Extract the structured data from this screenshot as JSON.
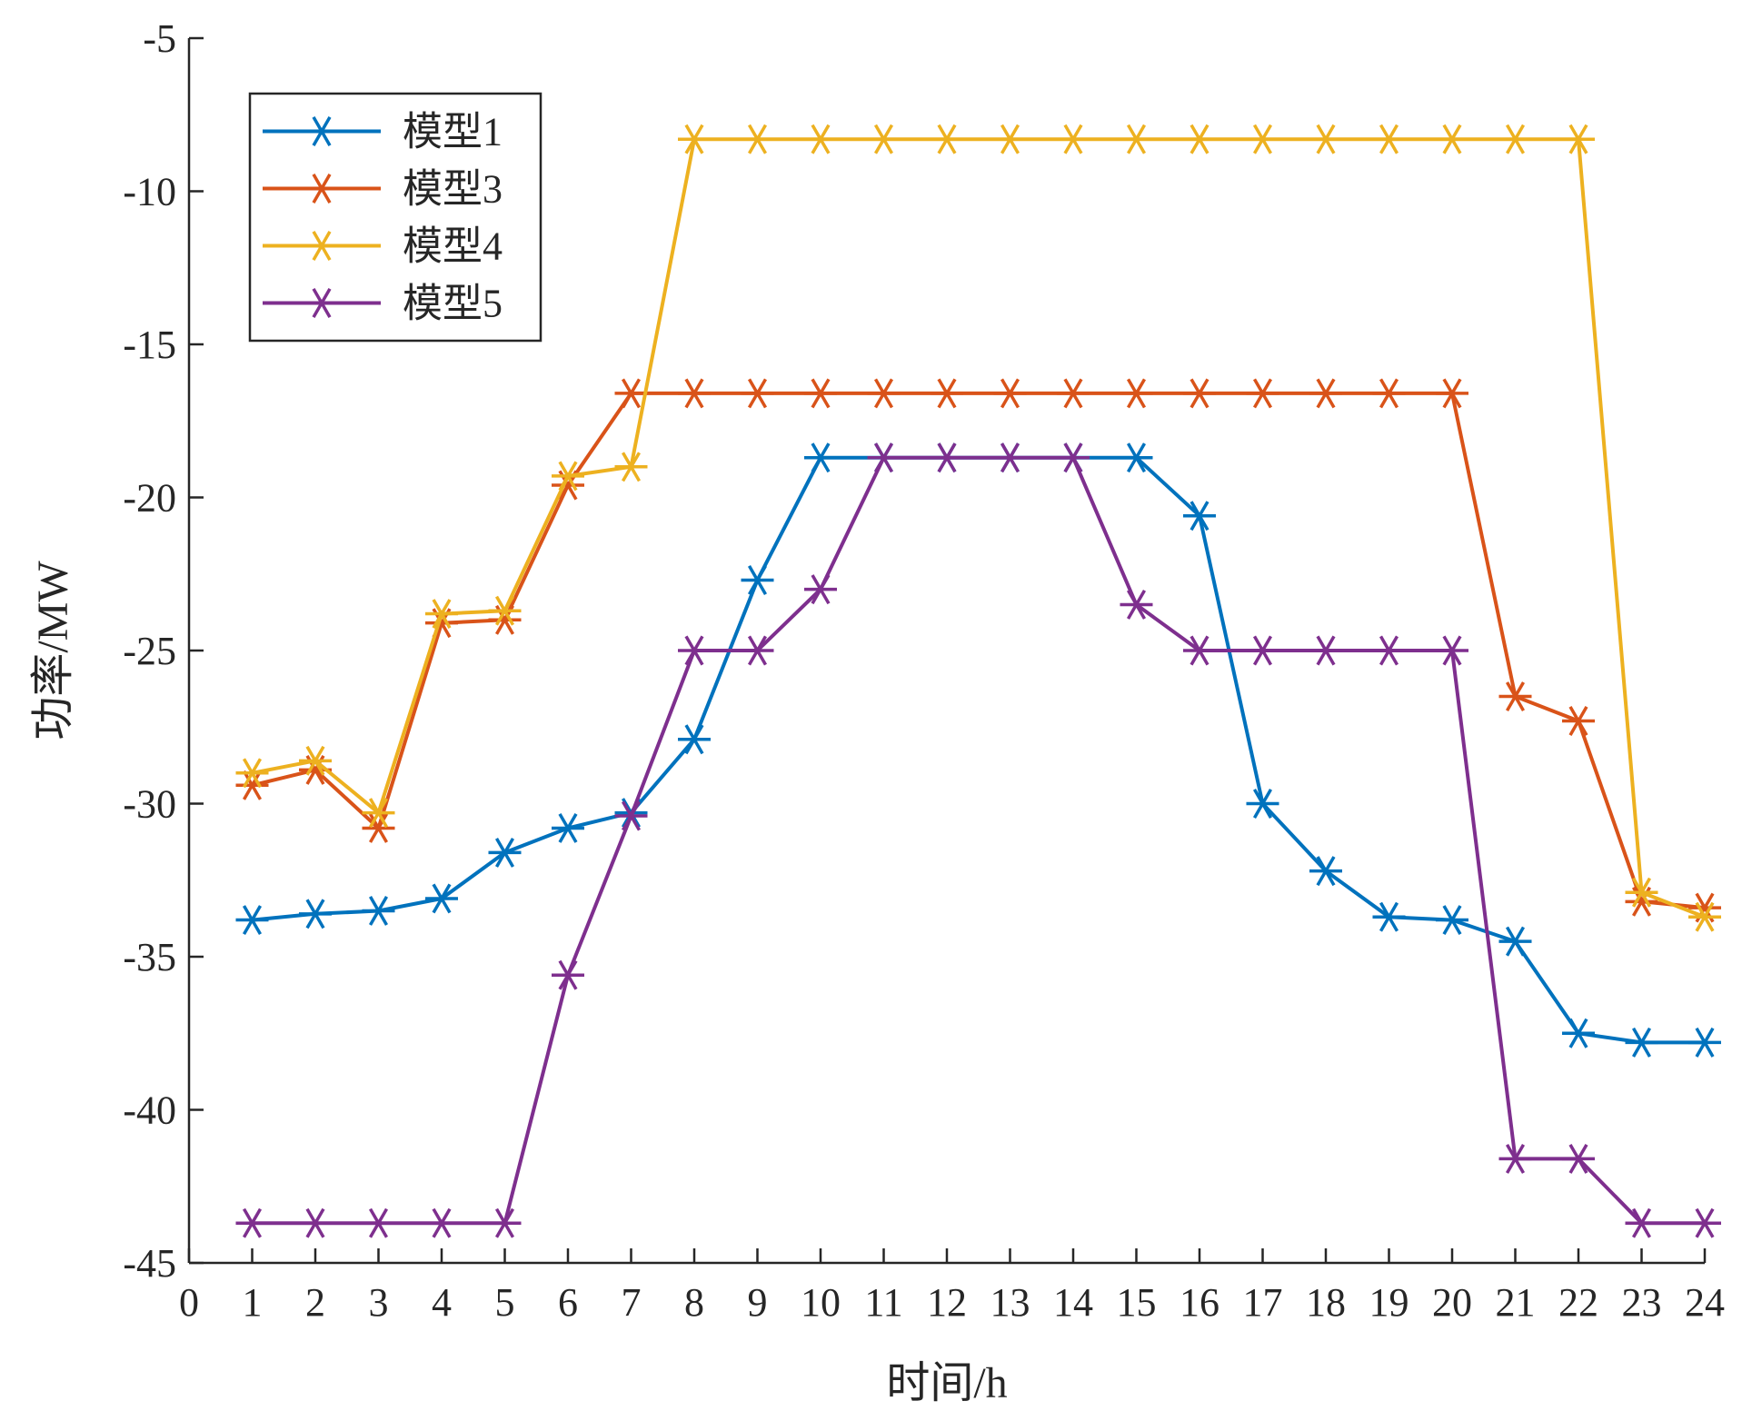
{
  "chart_data": {
    "type": "line",
    "title": "",
    "xlabel": "时间/h",
    "ylabel": "功率/MW",
    "xlim": [
      0,
      24
    ],
    "ylim": [
      -45,
      -5
    ],
    "xticks": [
      0,
      1,
      2,
      3,
      4,
      5,
      6,
      7,
      8,
      9,
      10,
      11,
      12,
      13,
      14,
      15,
      16,
      17,
      18,
      19,
      20,
      21,
      22,
      23,
      24
    ],
    "yticks": [
      -5,
      -10,
      -15,
      -20,
      -25,
      -30,
      -35,
      -40,
      -45
    ],
    "grid": false,
    "legend_position": "top-left",
    "x": [
      1,
      2,
      3,
      4,
      5,
      6,
      7,
      8,
      9,
      10,
      11,
      12,
      13,
      14,
      15,
      16,
      17,
      18,
      19,
      20,
      21,
      22,
      23,
      24
    ],
    "series": [
      {
        "name": "模型1",
        "color": "#0072BD",
        "values": [
          -33.8,
          -33.6,
          -33.5,
          -33.1,
          -31.6,
          -30.8,
          -30.3,
          -27.9,
          -22.7,
          -18.7,
          -18.7,
          -18.7,
          -18.7,
          -18.7,
          -18.7,
          -20.6,
          -30.0,
          -32.2,
          -33.7,
          -33.8,
          -34.5,
          -37.5,
          -37.8,
          -37.8
        ]
      },
      {
        "name": "模型3",
        "color": "#D95319",
        "values": [
          -29.4,
          -28.9,
          -30.8,
          -24.1,
          -24.0,
          -19.6,
          -16.6,
          -16.6,
          -16.6,
          -16.6,
          -16.6,
          -16.6,
          -16.6,
          -16.6,
          -16.6,
          -16.6,
          -16.6,
          -16.6,
          -16.6,
          -16.6,
          -26.5,
          -27.3,
          -33.2,
          -33.4
        ]
      },
      {
        "name": "模型4",
        "color": "#EDB120",
        "values": [
          -29.0,
          -28.6,
          -30.3,
          -23.8,
          -23.7,
          -19.3,
          -19.0,
          -8.3,
          -8.3,
          -8.3,
          -8.3,
          -8.3,
          -8.3,
          -8.3,
          -8.3,
          -8.3,
          -8.3,
          -8.3,
          -8.3,
          -8.3,
          -8.3,
          -8.3,
          -32.9,
          -33.7
        ]
      },
      {
        "name": "模型5",
        "color": "#7E2F8E",
        "values": [
          -43.7,
          -43.7,
          -43.7,
          -43.7,
          -43.7,
          -35.6,
          -30.4,
          -25.0,
          -25.0,
          -23.0,
          -18.7,
          -18.7,
          -18.7,
          -18.7,
          -23.5,
          -25.0,
          -25.0,
          -25.0,
          -25.0,
          -25.0,
          -41.6,
          -41.6,
          -43.7,
          -43.7
        ]
      }
    ]
  }
}
